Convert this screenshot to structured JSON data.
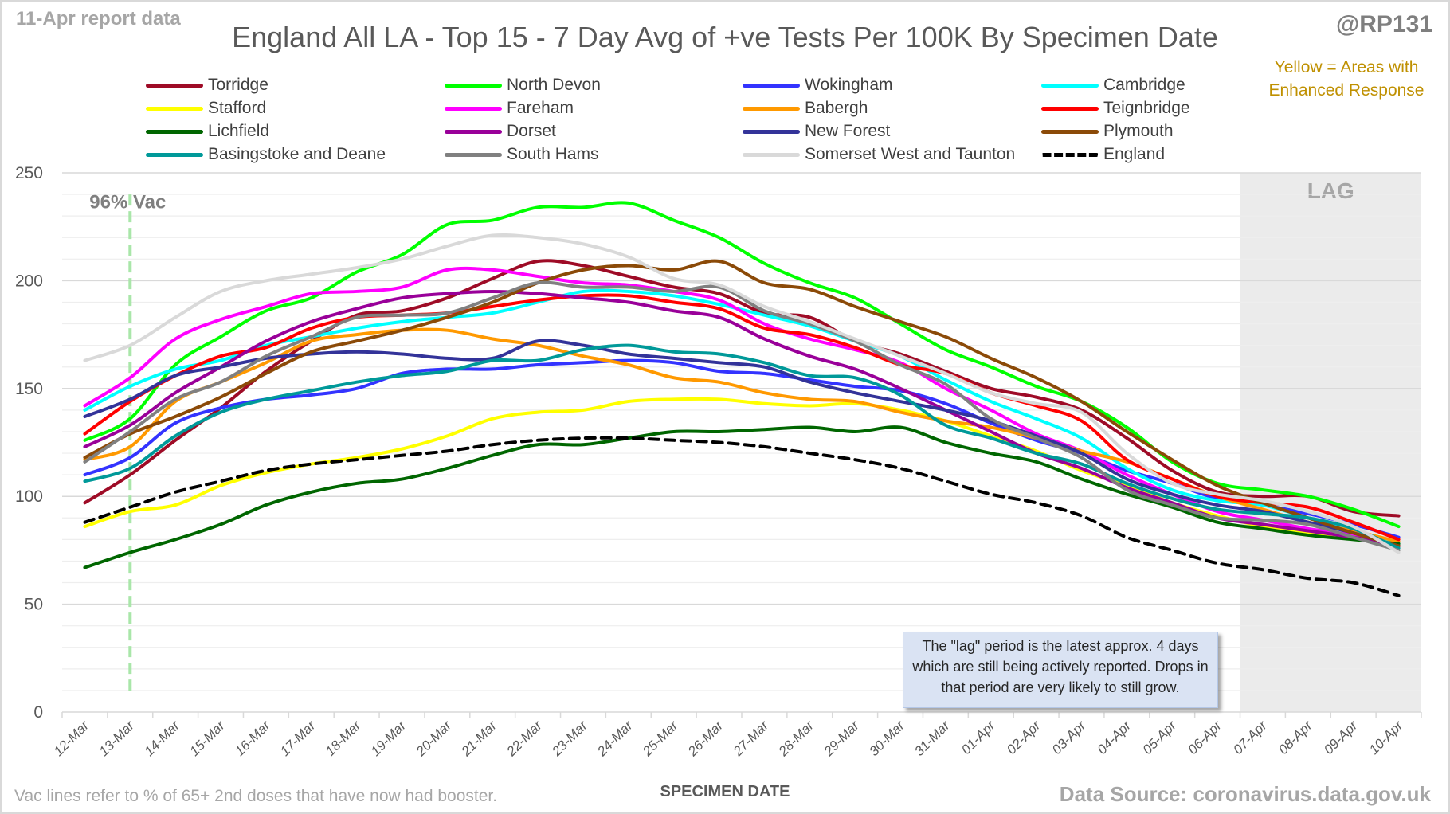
{
  "header": {
    "report_date": "11-Apr report data",
    "handle": "@RP131",
    "enhanced_note": "Yellow = Areas with Enhanced Response"
  },
  "footer": {
    "footnote": "Vac lines refer to % of 65+ 2nd doses that have now had booster.",
    "source": "Data Source: coronavirus.data.gov.uk"
  },
  "annotations": {
    "vac_label": "96% Vac",
    "vac_date": "13-Mar",
    "lag_label": "LAG",
    "lag_start": "07-Apr",
    "lag_note": "The \"lag\" period is the latest approx. 4 days which are still being actively reported. Drops in that period are very likely to still grow."
  },
  "chart_data": {
    "type": "line",
    "title": "England All LA - Top 15 - 7 Day Avg of +ve Tests Per 100K By Specimen Date",
    "xlabel": "SPECIMEN DATE",
    "ylabel": "",
    "ylim": [
      0,
      250
    ],
    "yticks": [
      0,
      50,
      100,
      150,
      200,
      250
    ],
    "grid": true,
    "legend": "top",
    "x": [
      "12-Mar",
      "13-Mar",
      "14-Mar",
      "15-Mar",
      "16-Mar",
      "17-Mar",
      "18-Mar",
      "19-Mar",
      "20-Mar",
      "21-Mar",
      "22-Mar",
      "23-Mar",
      "24-Mar",
      "25-Mar",
      "26-Mar",
      "27-Mar",
      "28-Mar",
      "29-Mar",
      "30-Mar",
      "31-Mar",
      "01-Apr",
      "02-Apr",
      "03-Apr",
      "04-Apr",
      "05-Apr",
      "06-Apr",
      "07-Apr",
      "08-Apr",
      "09-Apr",
      "10-Apr"
    ],
    "series": [
      {
        "name": "Torridge",
        "color": "#9e0b26",
        "dashed": false,
        "values": [
          97,
          110,
          126,
          141,
          158,
          172,
          184,
          186,
          192,
          201,
          209,
          207,
          202,
          197,
          194,
          185,
          183,
          172,
          166,
          158,
          150,
          146,
          140,
          127,
          112,
          102,
          100,
          100,
          93,
          91
        ]
      },
      {
        "name": "North Devon",
        "color": "#00ff00",
        "dashed": false,
        "values": [
          126,
          136,
          161,
          174,
          186,
          192,
          204,
          212,
          226,
          228,
          234,
          234,
          236,
          228,
          220,
          208,
          199,
          192,
          180,
          168,
          160,
          151,
          144,
          132,
          116,
          106,
          103,
          100,
          94,
          86
        ]
      },
      {
        "name": "Wokingham",
        "color": "#3333ff",
        "dashed": false,
        "values": [
          110,
          118,
          134,
          141,
          145,
          147,
          150,
          157,
          159,
          159,
          161,
          162,
          163,
          162,
          158,
          157,
          154,
          151,
          149,
          143,
          134,
          126,
          120,
          112,
          106,
          99,
          96,
          92,
          87,
          81
        ]
      },
      {
        "name": "Cambridge",
        "color": "#00ffff",
        "dashed": false,
        "values": [
          140,
          151,
          159,
          163,
          170,
          174,
          178,
          181,
          183,
          185,
          190,
          195,
          195,
          193,
          189,
          184,
          179,
          172,
          165,
          154,
          144,
          136,
          127,
          113,
          103,
          98,
          96,
          90,
          84,
          78
        ]
      },
      {
        "name": "Stafford",
        "color": "#ffff00",
        "dashed": false,
        "values": [
          86,
          93,
          96,
          105,
          111,
          115,
          118,
          122,
          128,
          136,
          139,
          140,
          144,
          145,
          145,
          143,
          142,
          143,
          140,
          135,
          128,
          121,
          112,
          105,
          97,
          91,
          86,
          83,
          81,
          77
        ]
      },
      {
        "name": "Fareham",
        "color": "#ff00ff",
        "dashed": false,
        "values": [
          142,
          155,
          173,
          182,
          188,
          194,
          195,
          197,
          205,
          205,
          202,
          199,
          198,
          195,
          191,
          180,
          173,
          168,
          162,
          150,
          140,
          129,
          121,
          110,
          101,
          93,
          89,
          85,
          82,
          77
        ]
      },
      {
        "name": "Babergh",
        "color": "#ff9900",
        "dashed": false,
        "values": [
          117,
          123,
          144,
          153,
          162,
          172,
          175,
          177,
          177,
          173,
          170,
          165,
          161,
          155,
          153,
          148,
          145,
          144,
          139,
          135,
          132,
          127,
          121,
          116,
          108,
          100,
          94,
          88,
          84,
          79
        ]
      },
      {
        "name": "Teignbridge",
        "color": "#ff0000",
        "dashed": false,
        "values": [
          129,
          144,
          156,
          165,
          169,
          178,
          183,
          184,
          185,
          188,
          191,
          193,
          193,
          190,
          187,
          178,
          175,
          169,
          161,
          157,
          148,
          142,
          135,
          117,
          108,
          100,
          97,
          95,
          88,
          80
        ]
      },
      {
        "name": "Lichfield",
        "color": "#006600",
        "dashed": false,
        "values": [
          67,
          74,
          80,
          87,
          96,
          102,
          106,
          108,
          113,
          119,
          124,
          124,
          127,
          130,
          130,
          131,
          132,
          130,
          132,
          125,
          120,
          116,
          108,
          101,
          95,
          88,
          85,
          82,
          80,
          78
        ]
      },
      {
        "name": "Dorset",
        "color": "#990099",
        "dashed": false,
        "values": [
          123,
          133,
          148,
          160,
          172,
          181,
          187,
          192,
          194,
          195,
          194,
          192,
          190,
          186,
          183,
          173,
          165,
          159,
          150,
          140,
          130,
          120,
          113,
          104,
          97,
          90,
          87,
          84,
          81,
          77
        ]
      },
      {
        "name": "New Forest",
        "color": "#333399",
        "dashed": false,
        "values": [
          137,
          145,
          156,
          160,
          164,
          166,
          167,
          166,
          164,
          164,
          172,
          170,
          166,
          164,
          162,
          160,
          153,
          148,
          144,
          140,
          135,
          128,
          120,
          108,
          101,
          96,
          93,
          88,
          83,
          77
        ]
      },
      {
        "name": "Plymouth",
        "color": "#8b4a08",
        "dashed": false,
        "values": [
          118,
          129,
          137,
          146,
          157,
          167,
          172,
          177,
          183,
          190,
          199,
          205,
          207,
          205,
          209,
          199,
          196,
          188,
          181,
          174,
          164,
          155,
          144,
          130,
          117,
          105,
          97,
          90,
          83,
          77
        ]
      },
      {
        "name": "Basingstoke and Deane",
        "color": "#009999",
        "dashed": false,
        "values": [
          107,
          113,
          128,
          139,
          145,
          149,
          153,
          156,
          158,
          163,
          163,
          168,
          170,
          167,
          166,
          162,
          156,
          155,
          147,
          133,
          127,
          120,
          115,
          106,
          99,
          94,
          92,
          90,
          85,
          76
        ]
      },
      {
        "name": "South Hams",
        "color": "#808080",
        "dashed": false,
        "values": [
          116,
          130,
          145,
          153,
          165,
          174,
          183,
          184,
          185,
          192,
          199,
          197,
          197,
          195,
          197,
          186,
          180,
          172,
          161,
          152,
          136,
          127,
          118,
          103,
          96,
          90,
          89,
          87,
          81,
          75
        ]
      },
      {
        "name": "Somerset West and Taunton",
        "color": "#d9d9d9",
        "dashed": false,
        "values": [
          163,
          170,
          183,
          195,
          200,
          203,
          206,
          210,
          216,
          221,
          220,
          217,
          211,
          201,
          198,
          188,
          181,
          173,
          165,
          157,
          148,
          143,
          139,
          120,
          106,
          101,
          98,
          93,
          86,
          74
        ]
      },
      {
        "name": "England",
        "color": "#000000",
        "dashed": true,
        "values": [
          88,
          95,
          102,
          107,
          112,
          115,
          117,
          119,
          121,
          124,
          126,
          127,
          127,
          126,
          125,
          123,
          120,
          117,
          113,
          107,
          101,
          97,
          91,
          81,
          75,
          69,
          66,
          62,
          60,
          54
        ]
      }
    ]
  }
}
